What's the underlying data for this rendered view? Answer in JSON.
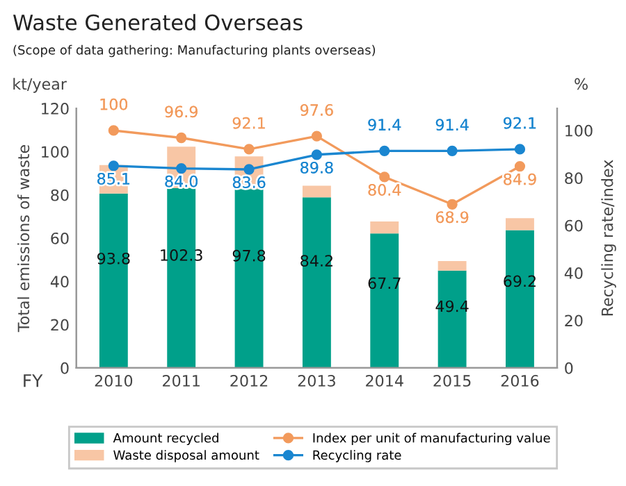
{
  "chart_data": {
    "type": "bar",
    "title": "Waste Generated Overseas",
    "subtitle": "(Scope of data gathering: Manufacturing plants overseas)",
    "xlabel": "FY",
    "ylabel": "Total emissions of waste",
    "y2label": "Recycling rate/index",
    "annotations": [
      "kt/year",
      "%"
    ],
    "categories": [
      "2010",
      "2011",
      "2012",
      "2013",
      "2014",
      "2015",
      "2016"
    ],
    "stacked": true,
    "series": [
      {
        "name": "Amount recycled",
        "color": "#00a08a",
        "values": [
          80.6,
          83.1,
          82.7,
          78.9,
          62.2,
          45.0,
          63.7
        ]
      },
      {
        "name": "Waste disposal amount",
        "color": "#f8c6a5",
        "values": [
          13.2,
          19.2,
          15.1,
          5.3,
          5.5,
          4.4,
          5.5
        ]
      },
      {
        "name": "Index per unit of manufacturing value",
        "type": "line",
        "axis": "y2",
        "color": "#f29a5c",
        "marker": "circle",
        "values": [
          100,
          96.9,
          92.1,
          97.6,
          80.4,
          68.9,
          84.9
        ],
        "value_labels": [
          "100",
          "96.9",
          "92.1",
          "97.6",
          "80.4",
          "68.9",
          "84.9"
        ]
      },
      {
        "name": "Recycling rate",
        "type": "line",
        "axis": "y2",
        "color": "#1a86d0",
        "marker": "circle",
        "values": [
          85.1,
          84.0,
          83.6,
          89.8,
          91.4,
          91.4,
          92.1
        ],
        "value_labels": [
          "85.1",
          "84.0",
          "83.6",
          "89.8",
          "91.4",
          "91.4",
          "92.1"
        ]
      }
    ],
    "totals": [
      "93.8",
      "102.3",
      "97.8",
      "84.2",
      "67.7",
      "49.4",
      "69.2"
    ],
    "ylim": [
      0,
      120
    ],
    "yticks": [
      0,
      20,
      40,
      60,
      80,
      100,
      120
    ],
    "y2lim": [
      0,
      109.3
    ],
    "y2ticks": [
      0,
      20,
      40,
      60,
      80,
      100
    ],
    "grid": false,
    "legend": "bottom"
  }
}
